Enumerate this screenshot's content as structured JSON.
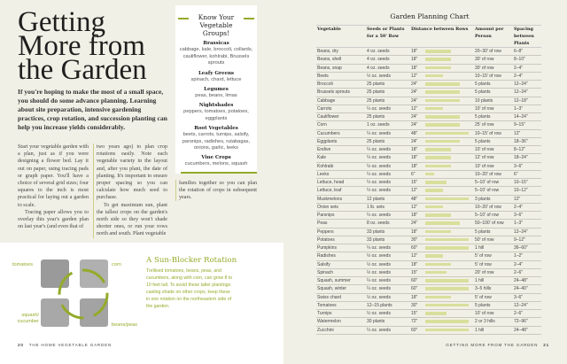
{
  "left_page": {
    "title": [
      "Getting",
      "More from",
      "the Garden"
    ],
    "intro": "If you're hoping to make the most of a small space, you should do some advance planning. Learning about site preparation, intensive gardening practices, crop rotation, and succession planting can help you increase yields considerably.",
    "body_col1": [
      "Start your vegetable garden with a plan, just as if you were designing a flower bed. Lay it out on paper, using tracing pads or graph paper. You'll have a choice of several grid sizes; four squares to the inch is most practical for laying out a garden to scale.",
      "Tracing paper allows you to overlay this year's garden plan on last year's (and even that of"
    ],
    "body_col2": [
      "two years ago) to plan crop rotations easily. Note each vegetable variety in the layout and, after you plant, the date of planting. It's important to ensure proper spacing so you can calculate how much seed to purchase.",
      "To get maximum sun, plant the tallest crops on the garden's north side so they won't shade shorter ones, or run your rows north and south. Plant vegetable"
    ],
    "body_col3": "families together so you can plan the rotation of crops in subsequent years.",
    "sidebar": {
      "title": "Know Your Vegetable Groups!",
      "groups": [
        {
          "name": "Brassicas",
          "items": "cabbage, kale, broccoli, collards, cauliflower, kohlrabi, Brussels sprouts"
        },
        {
          "name": "Leafy Greens",
          "items": "spinach, chard, lettuce"
        },
        {
          "name": "Legumes",
          "items": "peas, beans, limas"
        },
        {
          "name": "Nightshades",
          "items": "peppers, tomatoes, potatoes, eggplants"
        },
        {
          "name": "Root Vegetables",
          "items": "beets, carrots, turnips, salsify, parsnips, radishes, rutabagas, onions, garlic, leeks"
        },
        {
          "name": "Vine Crops",
          "items": "cucumbers, melons, squash"
        }
      ]
    },
    "illustration_labels": {
      "tl": "tomatoes",
      "tr": "corn",
      "bl": "squash/ cucumber",
      "br": "beans/peas"
    },
    "sun_blocker": {
      "title": "A Sun-Blocker Rotation",
      "text": "Trellised tomatoes, beans, peas, and cucumbers, along with corn, can grow 8 to 10 feet tall. To avoid these taller plantings casting shade on other crops, keep these in one rotation on the northeastern side of the garden."
    },
    "folio": {
      "page": "20",
      "running_head": "THE HOME VEGETABLE GARDEN"
    }
  },
  "right_page": {
    "chart_title": "Garden Planning Chart",
    "headers": [
      "Vegetable",
      "Seeds or Plants for a 50' Row",
      "Distance between Rows",
      "Amount per Person",
      "Spacing between Plants"
    ],
    "rows": [
      [
        "Beans, dry",
        "4 oz. seeds",
        "18\"",
        "20–30' of row",
        "6–8\""
      ],
      [
        "Beans, shell",
        "4 oz. seeds",
        "18\"",
        "30' of row",
        "8–10\""
      ],
      [
        "Beans, snap",
        "4 oz. seeds",
        "18\"",
        "30' of row",
        "2–4\""
      ],
      [
        "Beets",
        "½ oz. seeds",
        "12\"",
        "10–15' of row",
        "2–4\""
      ],
      [
        "Broccoli",
        "25 plants",
        "24\"",
        "5 plants",
        "12–24\""
      ],
      [
        "Brussels sprouts",
        "25 plants",
        "24\"",
        "5 plants",
        "12–24\""
      ],
      [
        "Cabbage",
        "25 plants",
        "24\"",
        "10 plants",
        "12–18\""
      ],
      [
        "Carrots",
        "¼ oz. seeds",
        "12\"",
        "10' of row",
        "1–3\""
      ],
      [
        "Cauliflower",
        "25 plants",
        "24\"",
        "5 plants",
        "14–24\""
      ],
      [
        "Corn",
        "1 oz. seeds",
        "24\"",
        "25' of row",
        "9–15\""
      ],
      [
        "Cucumbers",
        "¼ oz. seeds",
        "48\"",
        "10–15' of row",
        "12\""
      ],
      [
        "Eggplants",
        "25 plants",
        "24\"",
        "5 plants",
        "18–36\""
      ],
      [
        "Endive",
        "¼ oz. seeds",
        "18\"",
        "10' of row",
        "8–12\""
      ],
      [
        "Kale",
        "¼ oz. seeds",
        "18\"",
        "12' of row",
        "18–24\""
      ],
      [
        "Kohlrabi",
        "½ oz. seeds",
        "18\"",
        "10' of row",
        "3–6\""
      ],
      [
        "Leeks",
        "¼ oz. seeds",
        "6\"",
        "10–20' of row",
        "6\""
      ],
      [
        "Lettuce, head",
        "¼ oz. seeds",
        "15\"",
        "5–10' of row",
        "10–15\""
      ],
      [
        "Lettuce, leaf",
        "¼ oz. seeds",
        "12\"",
        "5–10' of row",
        "10–12\""
      ],
      [
        "Muskmelons",
        "12 plants",
        "48\"",
        "3 plants",
        "12\""
      ],
      [
        "Onion sets",
        "1 lb. sets",
        "12\"",
        "10–20' of row",
        "2–4\""
      ],
      [
        "Parsnips",
        "¼ oz. seeds",
        "18\"",
        "5–10' of row",
        "3–6\""
      ],
      [
        "Peas",
        "8 oz. seeds",
        "24\"",
        "50–100' of row",
        "1–3\""
      ],
      [
        "Peppers",
        "33 plants",
        "18\"",
        "5 plants",
        "12–24\""
      ],
      [
        "Potatoes",
        "33 plants",
        "30\"",
        "50' of row",
        "9–12\""
      ],
      [
        "Pumpkins",
        "¼ oz. seeds",
        "60\"",
        "1 hill",
        "36–60\""
      ],
      [
        "Radishes",
        "½ oz. seeds",
        "12\"",
        "5' of row",
        "1–2\""
      ],
      [
        "Salsify",
        "½ oz. seeds",
        "18\"",
        "5' of row",
        "2–4\""
      ],
      [
        "Spinach",
        "½ oz. seeds",
        "15\"",
        "20' of row",
        "2–6\""
      ],
      [
        "Squash, summer",
        "¼ oz. seeds",
        "60\"",
        "1 hill",
        "24–48\""
      ],
      [
        "Squash, winter",
        "¼ oz. seeds",
        "60\"",
        "3–5 hills",
        "24–40\""
      ],
      [
        "Swiss chard",
        "½ oz. seeds",
        "18\"",
        "5' of row",
        "3–6\""
      ],
      [
        "Tomatoes",
        "12–15 plants",
        "30\"",
        "5 plants",
        "12–24\""
      ],
      [
        "Turnips",
        "½ oz. seeds",
        "15\"",
        "10' of row",
        "2–6\""
      ],
      [
        "Watermelon",
        "30 plants",
        "72\"",
        "2 or 3 hills",
        "72–96\""
      ],
      [
        "Zucchini",
        "¼ oz. seeds",
        "60\"",
        "1 hill",
        "24–48\""
      ]
    ],
    "bar_color": "#d8df9c",
    "folio": {
      "running_head": "GETTING MORE FROM THE GARDEN",
      "page": "21"
    }
  },
  "accent_color": "#93ab2a"
}
